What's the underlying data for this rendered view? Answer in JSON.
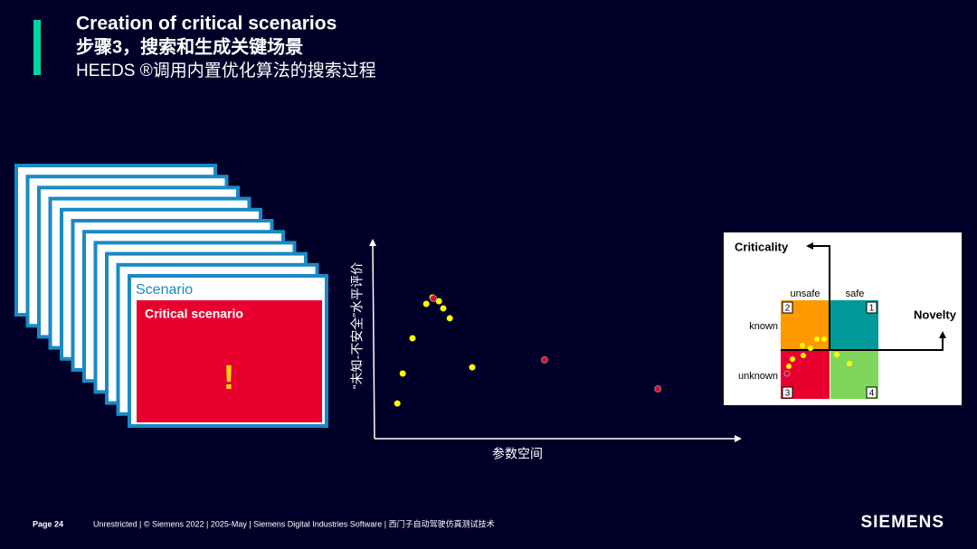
{
  "header": {
    "title": "Creation of critical scenarios",
    "subtitle": "步骤3，搜索和生成关键场景",
    "description": "HEEDS ®调用内置优化算法的搜索过程"
  },
  "scenario": {
    "card_title": "Scenario",
    "critical_label": "Critical scenario",
    "mark": "!"
  },
  "chart_data": {
    "type": "scatter",
    "x_label": "参数空间",
    "y_label": "“未知-不安全”水平评价",
    "xlim": [
      0,
      100
    ],
    "ylim": [
      0,
      100
    ],
    "series": [
      {
        "color": "#ffff00",
        "x": [
          6.3,
          7.8,
          10.5,
          14.3,
          16,
          17.8,
          19,
          20.8,
          27
        ],
        "values": [
          18.1,
          33.5,
          51.6,
          69.3,
          72.6,
          70.7,
          67,
          61.9,
          36.7
        ]
      },
      {
        "color": "#e8002f",
        "x": [
          16.3,
          47,
          78.3
        ],
        "values": [
          72.1,
          40.5,
          25.6
        ]
      }
    ]
  },
  "quadrant": {
    "y_axis": "Criticality",
    "x_axis": "Novelty",
    "col_left": "unsafe",
    "col_right": "safe",
    "row_top": "known",
    "row_bottom": "unknown",
    "q2": "2",
    "q1": "1",
    "q3": "3",
    "q4": "4"
  },
  "footer": {
    "page": "Page 24",
    "info": "Unrestricted | © Siemens 2022 | 2025-May | Siemens Digital Industries Software | 西门子自动驾驶仿真测试技术",
    "brand": "SIEMENS"
  }
}
